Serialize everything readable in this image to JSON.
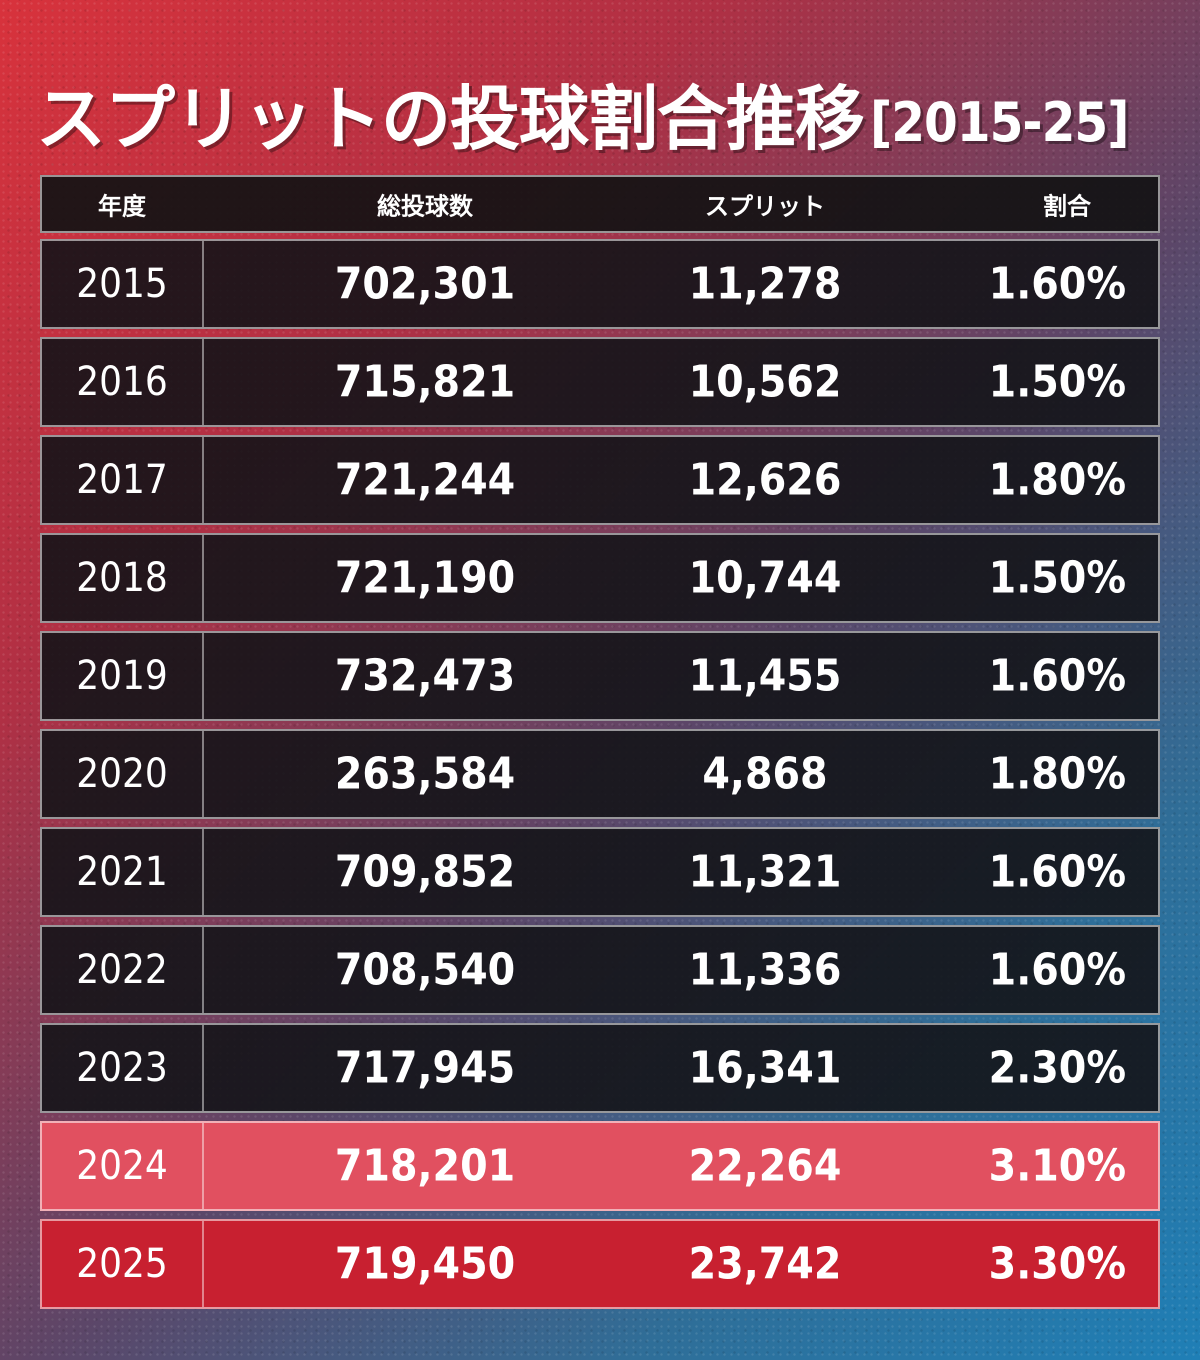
{
  "title": {
    "main": "スプリットの投球割合推移",
    "range": "[2015-25]"
  },
  "chart_data": {
    "type": "table",
    "columns": [
      "年度",
      "総投球数",
      "スプリット",
      "割合"
    ],
    "rows": [
      {
        "year": "2015",
        "total": "702,301",
        "split": "11,278",
        "ratio": "1.60%"
      },
      {
        "year": "2016",
        "total": "715,821",
        "split": "10,562",
        "ratio": "1.50%"
      },
      {
        "year": "2017",
        "total": "721,244",
        "split": "12,626",
        "ratio": "1.80%"
      },
      {
        "year": "2018",
        "total": "721,190",
        "split": "10,744",
        "ratio": "1.50%"
      },
      {
        "year": "2019",
        "total": "732,473",
        "split": "11,455",
        "ratio": "1.60%"
      },
      {
        "year": "2020",
        "total": "263,584",
        "split": "4,868",
        "ratio": "1.80%"
      },
      {
        "year": "2021",
        "total": "709,852",
        "split": "11,321",
        "ratio": "1.60%"
      },
      {
        "year": "2022",
        "total": "708,540",
        "split": "11,336",
        "ratio": "1.60%"
      },
      {
        "year": "2023",
        "total": "717,945",
        "split": "16,341",
        "ratio": "2.30%"
      },
      {
        "year": "2024",
        "total": "718,201",
        "split": "22,264",
        "ratio": "3.10%"
      },
      {
        "year": "2025",
        "total": "719,450",
        "split": "23,742",
        "ratio": "3.30%"
      }
    ],
    "highlight_rows": {
      "2024": "#e15060",
      "2025": "#c82030"
    }
  }
}
